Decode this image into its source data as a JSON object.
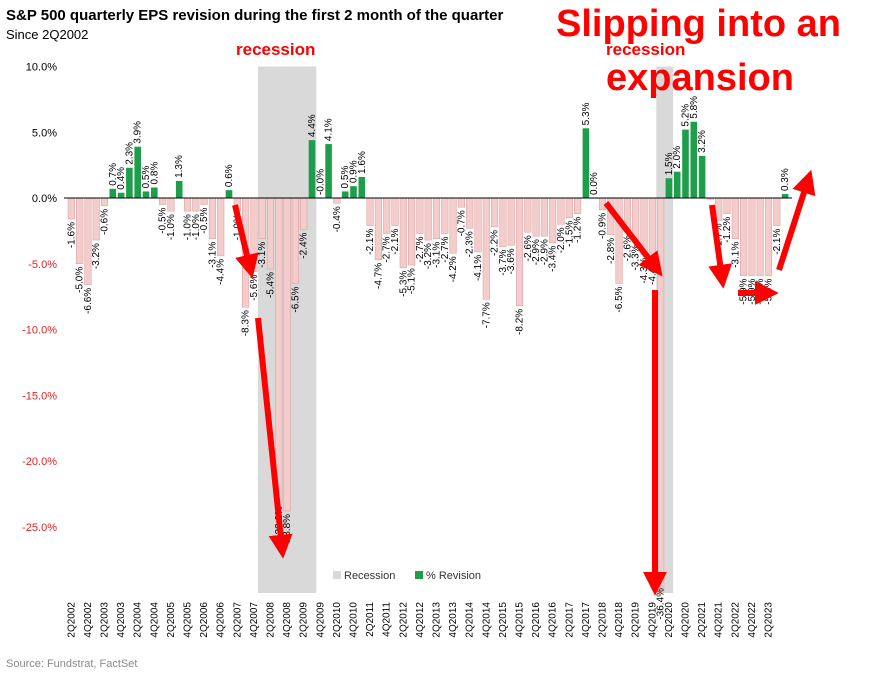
{
  "title": "S&P 500 quarterly EPS revision during the first 2 month of the quarter",
  "subtitle": "Since 2Q2002",
  "source": "Source: Fundstrat, FactSet",
  "colors": {
    "negative": "#f4cccc",
    "negative_stroke": "#d89a9a",
    "positive": "#1e9e4a",
    "recession": "#d9d9d9",
    "annotation": "#ff0000",
    "neg_axis_label": "#e02020"
  },
  "annotations": {
    "recession_label_1": "recession",
    "recession_label_2": "recession",
    "slipping_line1": "Slipping into an",
    "slipping_line2": "expansion"
  },
  "chart_data": {
    "type": "bar",
    "ylim": [
      -30,
      10
    ],
    "y_ticks": [
      10,
      5,
      0,
      -5,
      -10,
      -15,
      -20,
      -25
    ],
    "y_tick_labels": [
      "10.0%",
      "5.0%",
      "0.0%",
      "-5.0%",
      "-10.0%",
      "-15.0%",
      "-20.0%",
      "-25.0%"
    ],
    "x_tick_labels": [
      "2Q2002",
      "4Q2002",
      "2Q2003",
      "4Q2003",
      "2Q2004",
      "4Q2004",
      "2Q2005",
      "4Q2005",
      "2Q2006",
      "4Q2006",
      "2Q2007",
      "4Q2007",
      "2Q2008",
      "4Q2008",
      "2Q2009",
      "4Q2009",
      "2Q2010",
      "4Q2010",
      "2Q2011",
      "4Q2011",
      "2Q2012",
      "4Q2012",
      "2Q2013",
      "4Q2013",
      "2Q2014",
      "4Q2014",
      "2Q2015",
      "4Q2015",
      "2Q2016",
      "4Q2016",
      "2Q2017",
      "4Q2017",
      "2Q2018",
      "4Q2018",
      "2Q2019",
      "4Q2019",
      "2Q2020",
      "4Q2020",
      "2Q2021",
      "4Q2021",
      "2Q2022",
      "4Q2022",
      "2Q2023"
    ],
    "legend": [
      {
        "name": "Recession",
        "color": "#d9d9d9"
      },
      {
        "name": "% Revision",
        "color": "#1e9e4a"
      }
    ],
    "recessions": [
      [
        23,
        29
      ],
      [
        71,
        72
      ]
    ],
    "values": [
      -1.6,
      -5.0,
      -6.6,
      -3.2,
      -0.6,
      0.7,
      0.4,
      2.3,
      3.9,
      0.5,
      0.8,
      -0.5,
      -1.0,
      1.3,
      -1.0,
      -1.0,
      -0.5,
      -3.1,
      -4.4,
      0.6,
      -1.0,
      -8.3,
      -5.6,
      -3.1,
      -5.4,
      -23.2,
      -23.8,
      -6.5,
      -2.4,
      4.4,
      -0.0,
      4.1,
      -0.4,
      0.5,
      0.9,
      1.6,
      -2.1,
      -4.7,
      -2.7,
      -2.1,
      -5.3,
      -5.1,
      -2.7,
      -3.2,
      -3.1,
      -2.7,
      -4.2,
      -0.7,
      -2.3,
      -4.1,
      -7.7,
      -2.2,
      -3.7,
      -3.6,
      -8.2,
      -2.6,
      -2.9,
      -2.9,
      -3.4,
      -2.0,
      -1.5,
      -1.2,
      5.3,
      0.0,
      -0.9,
      -2.8,
      -6.5,
      -2.6,
      -3.3,
      -4.3,
      -4.4,
      -36.4,
      1.5,
      2.0,
      5.2,
      5.8,
      3.2,
      -0.1,
      -1.7,
      -1.2,
      -3.1,
      -5.9,
      -5.9,
      -5.9,
      -5.9,
      -2.1,
      0.3
    ],
    "value_labels": [
      "-1.6%",
      "-5.0%",
      "-6.6%",
      "-3.2%",
      "-0.6%",
      "0.7%",
      "0.4%",
      "2.3%",
      "3.9%",
      "0.5%",
      "0.8%",
      "-0.5%",
      "-1.0%",
      "1.3%",
      "-1.0%",
      "-1.0%",
      "-0.5%",
      "-3.1%",
      "-4.4%",
      "0.6%",
      "-1.0%",
      "-8.3%",
      "-5.6%",
      "-3.1%",
      "-5.4%",
      "-23.2%",
      "-23.8%",
      "-6.5%",
      "-2.4%",
      "4.4%",
      "-0.0%",
      "4.1%",
      "-0.4%",
      "0.5%",
      "0.9%",
      "1.6%",
      "-2.1%",
      "-4.7%",
      "-2.7%",
      "-2.1%",
      "-5.3%",
      "-5.1%",
      "-2.7%",
      "-3.2%",
      "-3.1%",
      "-2.7%",
      "-4.2%",
      "-0.7%",
      "-2.3%",
      "-4.1%",
      "-7.7%",
      "-2.2%",
      "-3.7%",
      "-3.6%",
      "-8.2%",
      "-2.6%",
      "-2.9%",
      "-2.9%",
      "-3.4%",
      "-2.0%",
      "-1.5%",
      "-1.2%",
      "5.3%",
      "0.0%",
      "-0.9%",
      "-2.8%",
      "-6.5%",
      "-2.6%",
      "-3.3%",
      "-4.3%",
      "-4.4%",
      "-36.4%",
      "1.5%",
      "2.0%",
      "5.2%",
      "5.8%",
      "3.2%",
      "-0.1%",
      "-1.7%",
      "-1.2%",
      "-3.1%",
      "-5.9%",
      "-5.9%",
      "-5.9%",
      "-5.9%",
      "-2.1%",
      "0.3%"
    ],
    "label_visible": [
      1,
      1,
      1,
      1,
      1,
      1,
      1,
      1,
      1,
      1,
      1,
      1,
      1,
      1,
      1,
      1,
      1,
      1,
      1,
      1,
      1,
      1,
      1,
      1,
      1,
      1,
      1,
      1,
      1,
      1,
      1,
      1,
      1,
      1,
      1,
      1,
      1,
      1,
      1,
      1,
      1,
      1,
      1,
      1,
      1,
      1,
      1,
      1,
      1,
      1,
      1,
      1,
      1,
      1,
      1,
      1,
      1,
      1,
      1,
      1,
      1,
      1,
      1,
      1,
      1,
      1,
      1,
      1,
      1,
      1,
      1,
      1,
      1,
      1,
      1,
      1,
      1,
      0,
      1,
      1,
      1,
      1,
      1,
      1,
      1,
      1,
      1
    ]
  }
}
